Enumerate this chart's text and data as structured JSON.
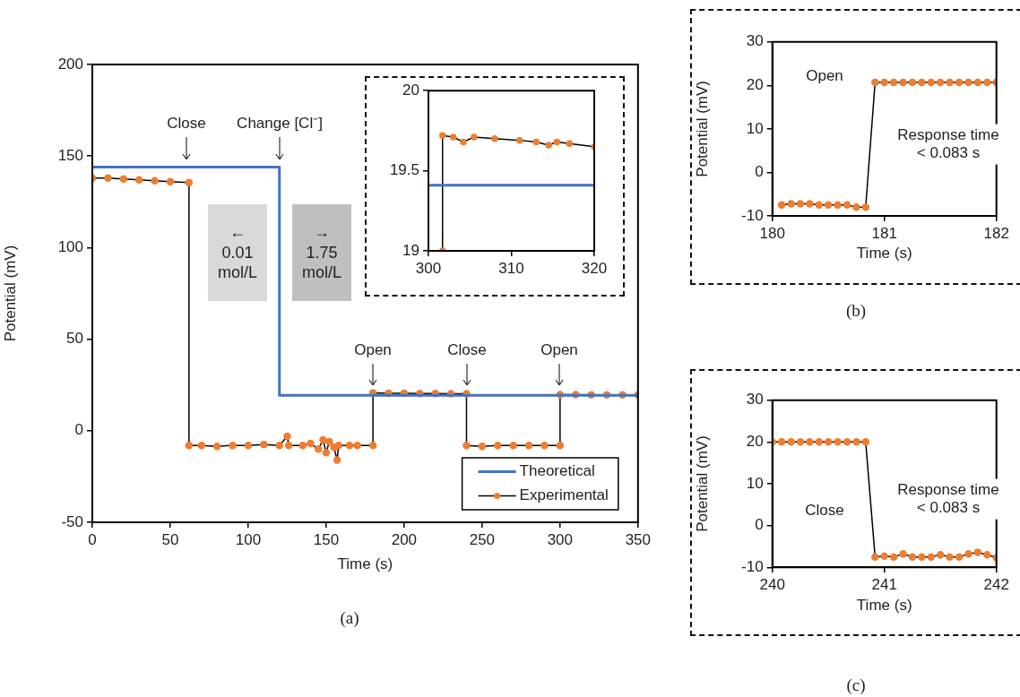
{
  "chart_data": [
    {
      "type": "line",
      "xlabel": "Time (s)",
      "ylabel": "Potential (mV)",
      "xlim": [
        0,
        350
      ],
      "xticks": [
        0,
        50,
        100,
        150,
        200,
        250,
        300,
        350
      ],
      "ylim": [
        -50,
        200
      ],
      "yticks": [
        -50,
        0,
        50,
        100,
        150,
        200
      ],
      "grid": false,
      "legend": "bottom right",
      "marker": "circle",
      "series": [
        {
          "name": "Theoretical",
          "type": "step",
          "marker": "none",
          "color": "#4472c4",
          "x": [
            0,
            120,
            350
          ],
          "values": [
            144,
            19.4,
            19.4
          ]
        },
        {
          "name": "Experimental",
          "type": "line",
          "color": "#ed7d31",
          "x": [
            0,
            10,
            20,
            30,
            40,
            50,
            62,
            62,
            70,
            80,
            90,
            100,
            110,
            120,
            125,
            126,
            135,
            140,
            145,
            148,
            150,
            152,
            155,
            157,
            158,
            165,
            170,
            180,
            180,
            190,
            200,
            210,
            220,
            230,
            240,
            240,
            250,
            260,
            270,
            280,
            290,
            300,
            300,
            310,
            320,
            330,
            340,
            350
          ],
          "values": [
            138,
            138,
            137.5,
            137,
            136.5,
            136,
            135.5,
            -8,
            -8,
            -8.5,
            -8,
            -8,
            -7.5,
            -8,
            -3,
            -8,
            -8,
            -7,
            -10,
            -5,
            -12,
            -6,
            -9,
            -16,
            -8,
            -8,
            -8,
            -8,
            20.7,
            20.5,
            20.5,
            20.3,
            20.3,
            20.2,
            20.2,
            -8,
            -8.5,
            -8,
            -8,
            -8,
            -8,
            -8,
            19.7,
            19.7,
            19.6,
            19.6,
            19.6,
            19.6
          ]
        }
      ],
      "annotations": [
        "Close",
        "Change [Cl⁻]",
        "Open",
        "Close",
        "Open",
        "← 0.01 mol/L",
        "→ 1.75 mol/L",
        "(a)"
      ]
    },
    {
      "type": "line",
      "xlim": [
        300,
        320
      ],
      "xticks": [
        300,
        310,
        320
      ],
      "ylim": [
        19,
        20
      ],
      "yticks": [
        19,
        19.5,
        20
      ],
      "grid": false,
      "marker": "circle",
      "series": [
        {
          "type": "step",
          "marker": "none",
          "color": "#4472c4",
          "x": [
            300,
            320
          ],
          "values": [
            19.41,
            19.41
          ]
        },
        {
          "type": "line",
          "color": "#ed7d31",
          "x": [
            301.7,
            301.7,
            303,
            304.2,
            305.5,
            308,
            311,
            313,
            314.5,
            315.5,
            317,
            320
          ],
          "values": [
            19,
            19.72,
            19.71,
            19.68,
            19.71,
            19.7,
            19.69,
            19.68,
            19.66,
            19.68,
            19.67,
            19.65
          ]
        }
      ]
    },
    {
      "type": "line",
      "xlabel": "Time (s)",
      "ylabel": "Potential (mV)",
      "xlim": [
        180,
        182
      ],
      "xticks": [
        180,
        181,
        182
      ],
      "ylim": [
        -10,
        30
      ],
      "yticks": [
        -10,
        0,
        10,
        20,
        30
      ],
      "grid": false,
      "marker": "circle",
      "series": [
        {
          "color": "#ed7d31",
          "x": [
            180.083,
            180.167,
            180.25,
            180.333,
            180.417,
            180.5,
            180.583,
            180.667,
            180.75,
            180.833,
            180.917,
            181,
            181.083,
            181.167,
            181.25,
            181.333,
            181.417,
            181.5,
            181.583,
            181.667,
            181.75,
            181.833,
            181.917,
            182
          ],
          "values": [
            -7.5,
            -7.2,
            -7.2,
            -7.2,
            -7.5,
            -7.5,
            -7.5,
            -7.5,
            -8,
            -8,
            20.7,
            20.7,
            20.7,
            20.7,
            20.7,
            20.7,
            20.7,
            20.7,
            20.7,
            20.7,
            20.7,
            20.7,
            20.7,
            20.7
          ]
        }
      ],
      "annotations": [
        "Open",
        "Response time < 0.083 s",
        "(b)"
      ]
    },
    {
      "type": "line",
      "xlabel": "Time (s)",
      "ylabel": "Potential (mV)",
      "xlim": [
        240,
        242
      ],
      "xticks": [
        240,
        241,
        242
      ],
      "ylim": [
        -10,
        30
      ],
      "yticks": [
        -10,
        0,
        10,
        20,
        30
      ],
      "grid": false,
      "marker": "circle",
      "series": [
        {
          "color": "#ed7d31",
          "x": [
            240,
            240.083,
            240.167,
            240.25,
            240.333,
            240.417,
            240.5,
            240.583,
            240.667,
            240.75,
            240.833,
            240.917,
            241,
            241.083,
            241.167,
            241.25,
            241.333,
            241.417,
            241.5,
            241.583,
            241.667,
            241.75,
            241.833,
            241.917,
            242
          ],
          "values": [
            20,
            20,
            20,
            20,
            20,
            20,
            20,
            20,
            20,
            20,
            20,
            -7.5,
            -7.3,
            -7.5,
            -6.8,
            -7.5,
            -7.5,
            -7.5,
            -7,
            -7.5,
            -7.5,
            -6.8,
            -6.4,
            -7,
            -7.7
          ]
        }
      ],
      "annotations": [
        "Close",
        "Response time < 0.083 s",
        "(c)"
      ]
    }
  ]
}
